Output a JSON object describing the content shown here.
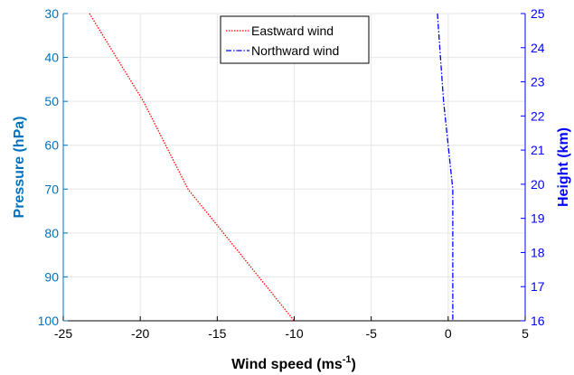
{
  "chart_data": {
    "type": "line",
    "xlabel": "Wind speed (ms",
    "xlabel_superscript": "-1",
    "xlabel_close": ")",
    "ylabel_left": "Pressure (hPa)",
    "ylabel_right": "Height (km)",
    "xlim": [
      -25,
      5
    ],
    "ylim_left": [
      30,
      100
    ],
    "ylim_right": [
      16,
      25
    ],
    "left_axis_reversed": true,
    "x_ticks": [
      "-25",
      "-20",
      "-15",
      "-10",
      "-5",
      "0",
      "5"
    ],
    "y_ticks_left": [
      "30",
      "40",
      "50",
      "60",
      "70",
      "80",
      "90",
      "100"
    ],
    "y_ticks_right": [
      "16",
      "17",
      "18",
      "19",
      "20",
      "21",
      "22",
      "23",
      "24",
      "25"
    ],
    "grid": true,
    "legend_position": "top",
    "series": [
      {
        "name": "Eastward wind",
        "color": "#ff0000",
        "style": "dotted",
        "points": [
          [
            -23.3,
            30
          ],
          [
            -19.8,
            50
          ],
          [
            -16.9,
            70
          ],
          [
            -10,
            100
          ]
        ]
      },
      {
        "name": "Northward wind",
        "color": "#0000ff",
        "style": "dash-dot",
        "points": [
          [
            -0.7,
            30
          ],
          [
            -0.5,
            40
          ],
          [
            -0.3,
            50
          ],
          [
            0,
            60
          ],
          [
            0.3,
            70
          ],
          [
            0.3,
            80
          ],
          [
            0.3,
            90
          ],
          [
            0.3,
            100
          ]
        ]
      }
    ],
    "colors": {
      "left_axis": "#0072bd",
      "right_axis": "#0000ff",
      "bottom_axis": "#000000",
      "grid": "#e6e6e6"
    }
  }
}
